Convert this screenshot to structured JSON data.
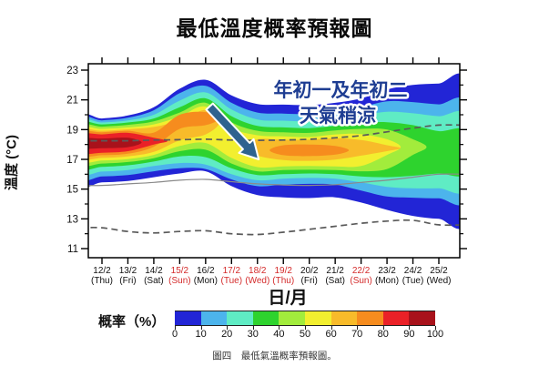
{
  "title": "最低溫度概率預報圖",
  "caption": "圖四　最低氣溫概率預報圖。",
  "annotation": {
    "line1": "年初一及年初二",
    "line2": "天氣稍涼",
    "color": "#1e3d92"
  },
  "axes": {
    "y_label": "溫度 (°C)",
    "x_label": "日/月",
    "y_ticks": [
      23,
      21,
      19,
      17,
      15,
      13,
      11
    ],
    "y_minor": [
      22,
      20,
      18,
      16,
      14,
      12
    ],
    "dates": [
      "12/2",
      "13/2",
      "14/2",
      "15/2",
      "16/2",
      "17/2",
      "18/2",
      "19/2",
      "20/2",
      "21/2",
      "22/2",
      "23/2",
      "24/2",
      "25/2"
    ],
    "weekdays": [
      "(Thu)",
      "(Fri)",
      "(Sat)",
      "(Sun)",
      "(Mon)",
      "(Tue)",
      "(Wed)",
      "(Thu)",
      "(Fri)",
      "(Sat)",
      "(Sun)",
      "(Mon)",
      "(Tue)",
      "(Wed)"
    ],
    "holiday_red": [
      false,
      false,
      false,
      true,
      false,
      true,
      true,
      true,
      false,
      false,
      true,
      false,
      false,
      false
    ],
    "red_color": "#d42b2b",
    "label_color": "#111111"
  },
  "legend": {
    "label": "概率（%）",
    "ticks": [
      "0",
      "10",
      "20",
      "30",
      "40",
      "50",
      "60",
      "70",
      "80",
      "90",
      "100"
    ],
    "colors": [
      "#2225d6",
      "#4cb4ec",
      "#5fecc4",
      "#2ed32e",
      "#a2ec3c",
      "#f2ef2f",
      "#f8bb2a",
      "#f68c1e",
      "#ea2127",
      "#a8121b"
    ]
  },
  "chart_data": {
    "type": "contour-fan",
    "title": "最低溫度概率預報圖",
    "x_categories": [
      "12/2",
      "13/2",
      "14/2",
      "15/2",
      "16/2",
      "17/2",
      "18/2",
      "19/2",
      "20/2",
      "21/2",
      "22/2",
      "23/2",
      "24/2",
      "25/2"
    ],
    "ylim": [
      11,
      23
    ],
    "ylabel": "溫度 (°C)",
    "xlabel": "日/月",
    "levels": [
      {
        "prob": "0-10",
        "color": "#2225d6",
        "top": [
          19.75,
          19.95,
          20.5,
          21.75,
          22.35,
          21.3,
          20.72,
          20.68,
          20.65,
          20.8,
          21.1,
          21.7,
          22.0,
          22.1
        ],
        "bottom": [
          15.45,
          15.55,
          15.8,
          16.05,
          16.2,
          15.2,
          14.6,
          14.45,
          14.4,
          14.45,
          14.1,
          13.6,
          13.2,
          13.0
        ]
      },
      {
        "prob": "10-20",
        "color": "#4cb4ec",
        "top": [
          19.62,
          19.8,
          20.3,
          21.45,
          21.95,
          20.8,
          20.15,
          20.08,
          20.05,
          20.2,
          20.5,
          20.9,
          20.85,
          20.7
        ],
        "bottom": [
          15.85,
          15.95,
          16.2,
          16.4,
          16.35,
          15.65,
          15.2,
          15.3,
          15.35,
          15.3,
          14.9,
          14.5,
          14.42,
          14.38
        ]
      },
      {
        "prob": "20-30",
        "color": "#5fecc4",
        "top": [
          19.48,
          19.62,
          20.0,
          20.95,
          21.5,
          20.35,
          19.68,
          19.6,
          19.55,
          19.7,
          19.95,
          20.2,
          20.1,
          19.9
        ],
        "bottom": [
          16.18,
          16.28,
          16.55,
          16.75,
          16.65,
          16.0,
          15.6,
          15.7,
          15.75,
          15.7,
          15.45,
          15.15,
          15.05,
          15.05
        ]
      },
      {
        "prob": "30-40",
        "color": "#2ed32e",
        "top": [
          19.35,
          19.48,
          19.75,
          20.5,
          21.1,
          19.9,
          19.25,
          19.15,
          19.1,
          19.25,
          19.45,
          19.5,
          19.3,
          18.9
        ],
        "bottom": [
          16.5,
          16.6,
          16.85,
          17.2,
          17.15,
          16.4,
          15.95,
          16.0,
          16.05,
          16.0,
          15.85,
          15.8,
          15.9,
          16.05
        ]
      },
      {
        "prob": "40-50",
        "color": "#a2ec3c",
        "top": [
          19.2,
          19.32,
          19.55,
          20.15,
          20.8,
          19.5,
          18.92,
          18.82,
          18.78,
          18.95,
          19.05,
          19.0,
          18.35,
          null
        ],
        "bottom": [
          16.72,
          16.82,
          17.08,
          17.55,
          17.65,
          16.72,
          16.2,
          16.28,
          16.3,
          16.28,
          16.2,
          16.35,
          17.3,
          null
        ]
      },
      {
        "prob": "50-60",
        "color": "#f2ef2f",
        "top": [
          19.05,
          19.15,
          19.35,
          19.88,
          20.55,
          19.12,
          18.62,
          18.55,
          18.5,
          18.68,
          18.7,
          18.35,
          null,
          null
        ],
        "bottom": [
          16.92,
          17.02,
          17.3,
          17.9,
          18.1,
          17.1,
          16.48,
          16.52,
          16.55,
          16.52,
          16.55,
          17.3,
          null,
          null
        ]
      },
      {
        "prob": "60-70",
        "color": "#f8bb2a",
        "top": [
          18.92,
          19.02,
          19.18,
          19.62,
          20.32,
          null,
          18.35,
          18.32,
          18.32,
          18.42,
          18.3,
          17.95,
          null,
          null
        ],
        "bottom": [
          17.1,
          17.2,
          17.5,
          18.28,
          18.68,
          null,
          17.25,
          16.95,
          16.9,
          16.98,
          17.25,
          17.55,
          null,
          null
        ]
      },
      {
        "prob": "70-80",
        "color": "#f68c1e",
        "top": [
          18.82,
          18.92,
          18.8,
          20.0,
          20.18,
          null,
          null,
          17.95,
          18.0,
          17.9,
          null,
          null,
          null,
          null
        ],
        "bottom": [
          17.28,
          17.38,
          17.85,
          19.05,
          19.3,
          null,
          null,
          17.28,
          17.22,
          17.32,
          null,
          null,
          null,
          null
        ]
      },
      {
        "prob": "80-90",
        "color": "#ea2127",
        "top": [
          18.68,
          18.78,
          18.45,
          null,
          null,
          null,
          null,
          null,
          null,
          null,
          null,
          null,
          null,
          null
        ],
        "bottom": [
          17.45,
          17.55,
          18.0,
          null,
          null,
          null,
          null,
          null,
          null,
          null,
          null,
          null,
          null,
          null
        ]
      },
      {
        "prob": "90-100",
        "color": "#a8121b",
        "top": [
          18.4,
          18.45,
          null,
          null,
          null,
          null,
          null,
          null,
          null,
          null,
          null,
          null,
          null,
          null
        ],
        "bottom": [
          17.75,
          17.82,
          null,
          null,
          null,
          null,
          null,
          null,
          null,
          null,
          null,
          null,
          null,
          null
        ]
      }
    ],
    "lines": [
      {
        "name": "climatological-normal",
        "style": "solid",
        "color": "#8a8a8a",
        "values": [
          15.25,
          15.35,
          15.45,
          15.6,
          15.65,
          15.5,
          15.35,
          15.28,
          15.25,
          15.3,
          15.45,
          15.6,
          15.8,
          16.0
        ]
      },
      {
        "name": "upper-reference",
        "style": "dashed",
        "color": "#5a5a5a",
        "values": [
          18.25,
          18.25,
          18.3,
          18.32,
          18.35,
          18.3,
          18.28,
          18.3,
          18.35,
          18.45,
          18.6,
          18.85,
          19.1,
          19.3
        ]
      },
      {
        "name": "lower-reference",
        "style": "dashed",
        "color": "#5a5a5a",
        "values": [
          12.4,
          12.15,
          12.05,
          12.15,
          12.2,
          12.0,
          11.95,
          12.1,
          12.3,
          12.5,
          12.7,
          12.85,
          12.9,
          12.6
        ]
      }
    ],
    "arrow": {
      "tail": {
        "date_index": 4.15,
        "temp": 20.55
      },
      "tip": {
        "date_index": 6.05,
        "temp": 17.0
      },
      "color": "#2f628f"
    }
  }
}
